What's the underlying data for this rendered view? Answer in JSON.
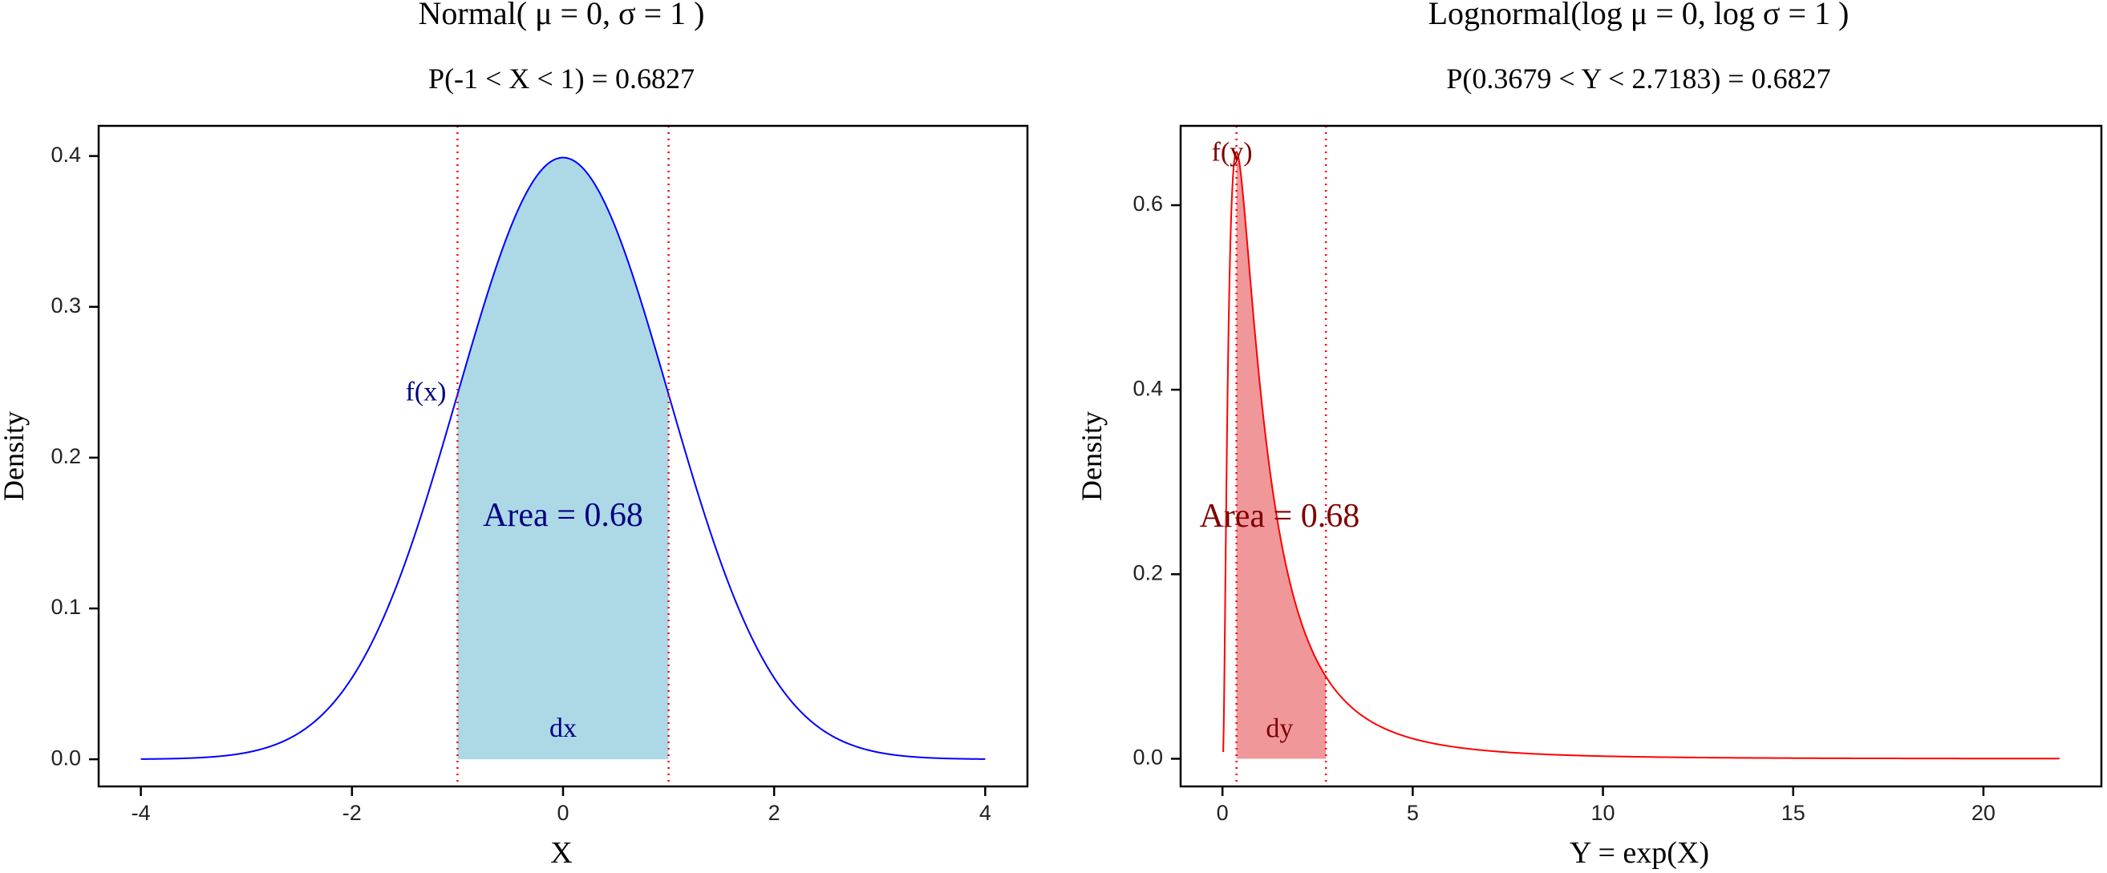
{
  "chart_data": [
    {
      "type": "area",
      "title": "Normal( μ = 0, σ = 1 )",
      "subtitle": "P(-1 < X < 1) = 0.6827",
      "xlabel": "X",
      "ylabel": "Density",
      "xlim": [
        -4.4,
        4.4
      ],
      "ylim": [
        -0.018,
        0.42
      ],
      "xticks": [
        -4,
        -2,
        0,
        2,
        4
      ],
      "xtick_labels": [
        "-4",
        "-2",
        "0",
        "2",
        "4"
      ],
      "yticks": [
        0.0,
        0.1,
        0.2,
        0.3,
        0.4
      ],
      "ytick_labels": [
        "0.0",
        "0.1",
        "0.2",
        "0.3",
        "0.4"
      ],
      "curve": {
        "distribution": "normal",
        "mu": 0,
        "sigma": 1,
        "x_from": -4,
        "x_to": 4,
        "color": "#0000ff"
      },
      "shaded_region": {
        "from": -1,
        "to": 1,
        "color": "#add8e6"
      },
      "vlines": [
        -1,
        1
      ],
      "vline_color": "#ff0000",
      "annotations": {
        "fx_label": {
          "text": "f(x)",
          "x": -1.3,
          "y": 0.242,
          "color": "#000080"
        },
        "area_label": {
          "text": "Area = 0.68",
          "x": 0,
          "y": 0.16,
          "color": "#000080"
        },
        "d_label": {
          "text": "dx",
          "x": 0,
          "y": 0.019,
          "color": "#000080"
        }
      }
    },
    {
      "type": "area",
      "title": "Lognormal(log μ = 0, log σ = 1 )",
      "subtitle": "P(0.3679 < Y < 2.7183) = 0.6827",
      "xlabel": "Y = exp(X)",
      "ylabel": "Density",
      "xlim": [
        -1.1,
        23.1
      ],
      "ylim": [
        -0.03,
        0.686
      ],
      "xticks": [
        0,
        5,
        10,
        15,
        20
      ],
      "xtick_labels": [
        "0",
        "5",
        "10",
        "15",
        "20"
      ],
      "yticks": [
        0.0,
        0.2,
        0.4,
        0.6
      ],
      "ytick_labels": [
        "0.0",
        "0.2",
        "0.4",
        "0.6"
      ],
      "curve": {
        "distribution": "lognormal",
        "meanlog": 0,
        "sdlog": 1,
        "x_from": 0.0183,
        "x_to": 22,
        "color": "#ff0000"
      },
      "shaded_region": {
        "from": 0.3679,
        "to": 2.7183,
        "color": "#f0979a"
      },
      "vlines": [
        0.3679,
        2.7183
      ],
      "vline_color": "#ff0000",
      "annotations": {
        "fx_label": {
          "text": "f(y)",
          "x": 0.25,
          "y": 0.655,
          "color": "#800000"
        },
        "area_label": {
          "text": "Area = 0.68",
          "x": 1.5,
          "y": 0.26,
          "color": "#800000"
        },
        "d_label": {
          "text": "dy",
          "x": 1.5,
          "y": 0.03,
          "color": "#800000"
        }
      }
    }
  ]
}
